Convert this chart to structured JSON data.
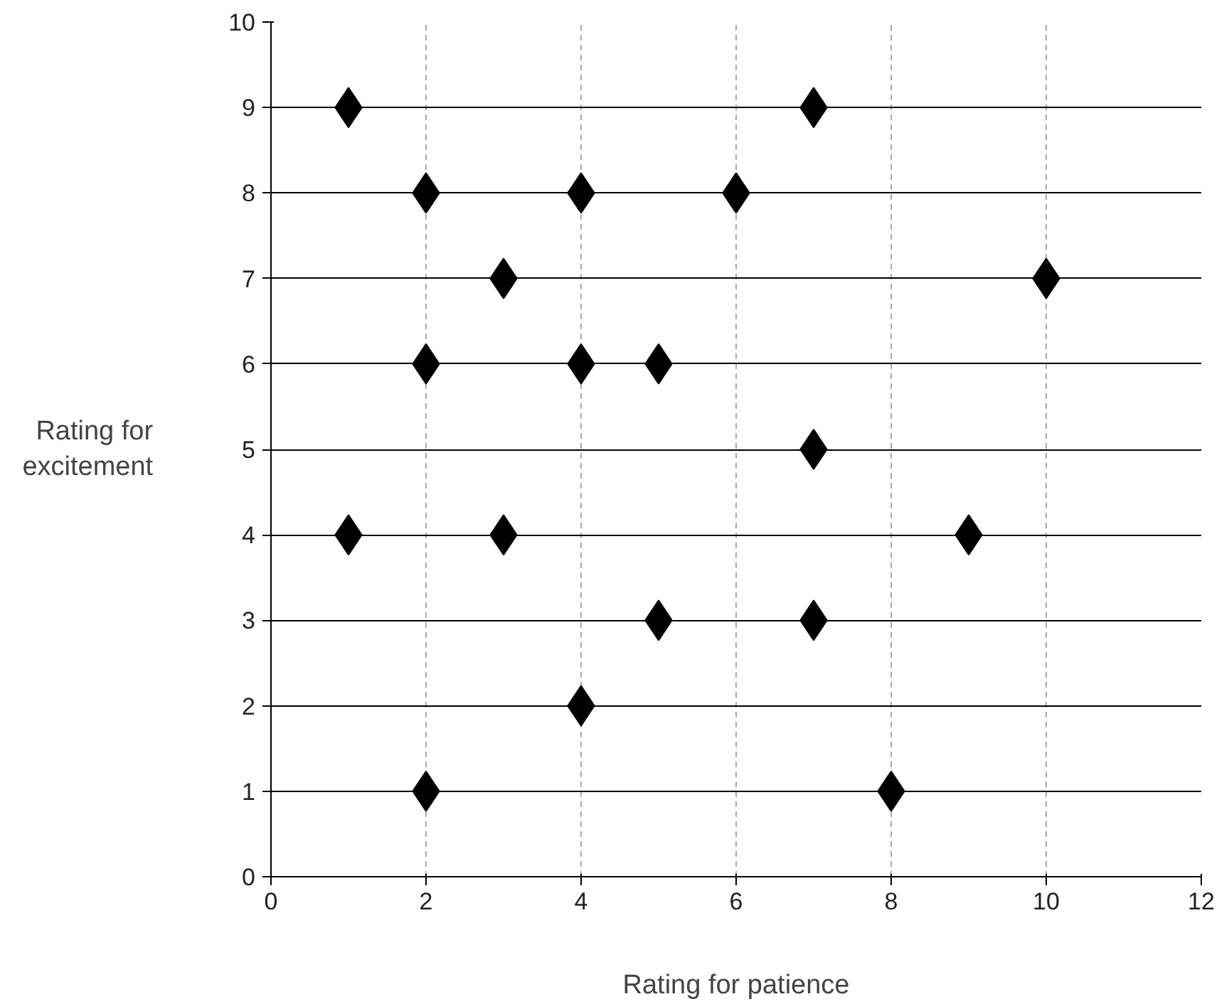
{
  "chart_data": {
    "type": "scatter",
    "xlabel": "Rating for patience",
    "ylabel": "Rating for excitement",
    "x": [
      1,
      7,
      2,
      4,
      6,
      3,
      10,
      2,
      4,
      5,
      7,
      1,
      3,
      9,
      5,
      7,
      4,
      2,
      8
    ],
    "values": [
      9,
      9,
      8,
      8,
      8,
      7,
      7,
      6,
      6,
      6,
      5,
      4,
      4,
      4,
      3,
      3,
      2,
      1,
      1
    ],
    "color": "#000000",
    "marker": "diamond",
    "xlim": [
      0,
      12
    ],
    "ylim": [
      0,
      10
    ],
    "xticks": [
      0,
      2,
      4,
      6,
      8,
      10,
      12
    ],
    "yticks": [
      0,
      1,
      2,
      3,
      4,
      5,
      6,
      7,
      8,
      9,
      10
    ],
    "grid": true
  }
}
